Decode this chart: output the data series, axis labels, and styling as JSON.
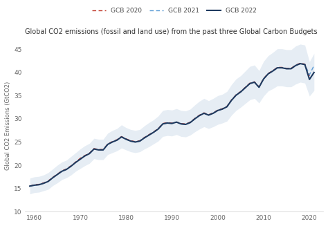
{
  "title": "Global CO2 emissions (fossil and land use) from the past three Global Carbon Budgets",
  "ylabel": "Global CO2 Emissions (GtCO2)",
  "years": [
    1959,
    1960,
    1961,
    1962,
    1963,
    1964,
    1965,
    1966,
    1967,
    1968,
    1969,
    1970,
    1971,
    1972,
    1973,
    1974,
    1975,
    1976,
    1977,
    1978,
    1979,
    1980,
    1981,
    1982,
    1983,
    1984,
    1985,
    1986,
    1987,
    1988,
    1989,
    1990,
    1991,
    1992,
    1993,
    1994,
    1995,
    1996,
    1997,
    1998,
    1999,
    2000,
    2001,
    2002,
    2003,
    2004,
    2005,
    2006,
    2007,
    2008,
    2009,
    2010,
    2011,
    2012,
    2013,
    2014,
    2015,
    2016,
    2017,
    2018,
    2019,
    2020,
    2021
  ],
  "gcb2020": [
    15.5,
    15.8,
    15.9,
    16.2,
    16.6,
    17.4,
    18.1,
    18.8,
    19.2,
    19.9,
    20.7,
    21.5,
    22.1,
    22.6,
    23.6,
    23.4,
    23.4,
    24.6,
    25.1,
    25.5,
    26.2,
    25.7,
    25.3,
    25.1,
    25.3,
    26.0,
    26.6,
    27.2,
    27.9,
    29.0,
    29.2,
    29.1,
    29.3,
    29.0,
    28.9,
    29.3,
    30.1,
    30.8,
    31.3,
    30.9,
    31.3,
    31.9,
    32.2,
    32.7,
    34.1,
    35.2,
    35.9,
    36.8,
    37.7,
    38.0,
    36.9,
    38.7,
    39.8,
    40.4,
    41.1,
    41.1,
    40.9,
    40.9,
    41.6,
    42.0,
    41.8,
    39.2,
    null
  ],
  "gcb2021": [
    15.5,
    15.7,
    15.8,
    16.1,
    16.5,
    17.3,
    18.0,
    18.7,
    19.1,
    19.8,
    20.6,
    21.3,
    22.0,
    22.5,
    23.5,
    23.3,
    23.3,
    24.5,
    25.0,
    25.4,
    26.1,
    25.6,
    25.2,
    25.0,
    25.2,
    25.9,
    26.5,
    27.1,
    27.8,
    28.9,
    29.1,
    29.0,
    29.3,
    28.9,
    28.8,
    29.2,
    30.0,
    30.7,
    31.2,
    30.8,
    31.2,
    31.8,
    32.1,
    32.6,
    34.0,
    35.1,
    35.8,
    36.7,
    37.6,
    37.9,
    36.8,
    38.6,
    39.7,
    40.3,
    41.0,
    41.0,
    40.8,
    40.8,
    41.5,
    41.9,
    41.7,
    39.5,
    41.5
  ],
  "gcb2022": [
    15.5,
    15.7,
    15.8,
    16.1,
    16.5,
    17.3,
    18.0,
    18.7,
    19.1,
    19.8,
    20.6,
    21.3,
    22.0,
    22.5,
    23.5,
    23.3,
    23.3,
    24.5,
    25.0,
    25.4,
    26.1,
    25.6,
    25.2,
    25.0,
    25.2,
    25.9,
    26.5,
    27.1,
    27.8,
    28.9,
    29.1,
    29.0,
    29.3,
    28.9,
    28.8,
    29.2,
    30.0,
    30.7,
    31.2,
    30.8,
    31.2,
    31.8,
    32.1,
    32.6,
    34.0,
    35.1,
    35.8,
    36.7,
    37.6,
    37.9,
    36.8,
    38.6,
    39.7,
    40.3,
    41.0,
    41.0,
    40.8,
    40.8,
    41.5,
    41.9,
    41.7,
    38.5,
    40.0
  ],
  "unc_upper": [
    17.2,
    17.5,
    17.6,
    17.9,
    18.4,
    19.2,
    20.0,
    20.7,
    21.1,
    21.9,
    22.7,
    23.5,
    24.2,
    24.7,
    25.8,
    25.6,
    25.6,
    26.9,
    27.5,
    27.9,
    28.7,
    28.1,
    27.7,
    27.5,
    27.7,
    28.5,
    29.2,
    29.8,
    30.6,
    31.8,
    32.0,
    31.9,
    32.2,
    31.8,
    31.7,
    32.1,
    33.0,
    33.8,
    34.4,
    33.9,
    34.4,
    35.0,
    35.3,
    35.9,
    37.4,
    38.6,
    39.3,
    40.3,
    41.3,
    41.6,
    40.4,
    42.4,
    43.6,
    44.3,
    45.1,
    45.1,
    44.9,
    44.9,
    45.7,
    46.1,
    45.9,
    42.3,
    44.1
  ],
  "unc_lower": [
    13.8,
    14.1,
    14.2,
    14.5,
    14.8,
    15.6,
    16.2,
    16.9,
    17.3,
    17.9,
    18.7,
    19.3,
    19.9,
    20.4,
    21.4,
    21.2,
    21.2,
    22.3,
    22.7,
    23.1,
    23.7,
    23.3,
    22.9,
    22.7,
    22.9,
    23.5,
    24.0,
    24.6,
    25.2,
    26.2,
    26.4,
    26.3,
    26.6,
    26.2,
    26.1,
    26.5,
    27.2,
    27.8,
    28.3,
    27.9,
    28.3,
    28.8,
    29.1,
    29.5,
    30.8,
    31.8,
    32.5,
    33.3,
    34.1,
    34.4,
    33.4,
    34.9,
    36.0,
    36.5,
    37.1,
    37.1,
    36.9,
    36.9,
    37.5,
    37.9,
    37.7,
    34.9,
    36.1
  ],
  "color_gcb2020": "#c0392b",
  "color_gcb2021": "#5b9bd5",
  "color_gcb2022": "#1f3a5f",
  "color_shade": "#c8d8e8",
  "ylim": [
    10,
    47
  ],
  "xlim": [
    1958,
    2023
  ],
  "yticks": [
    10,
    15,
    20,
    25,
    30,
    35,
    40,
    45
  ],
  "xticks": [
    1960,
    1970,
    1980,
    1990,
    2000,
    2010,
    2020
  ],
  "background_color": "#ffffff",
  "plot_bg_color": "#f0f0f0",
  "legend_labels": [
    "GCB 2020",
    "GCB 2021",
    "GCB 2022"
  ]
}
